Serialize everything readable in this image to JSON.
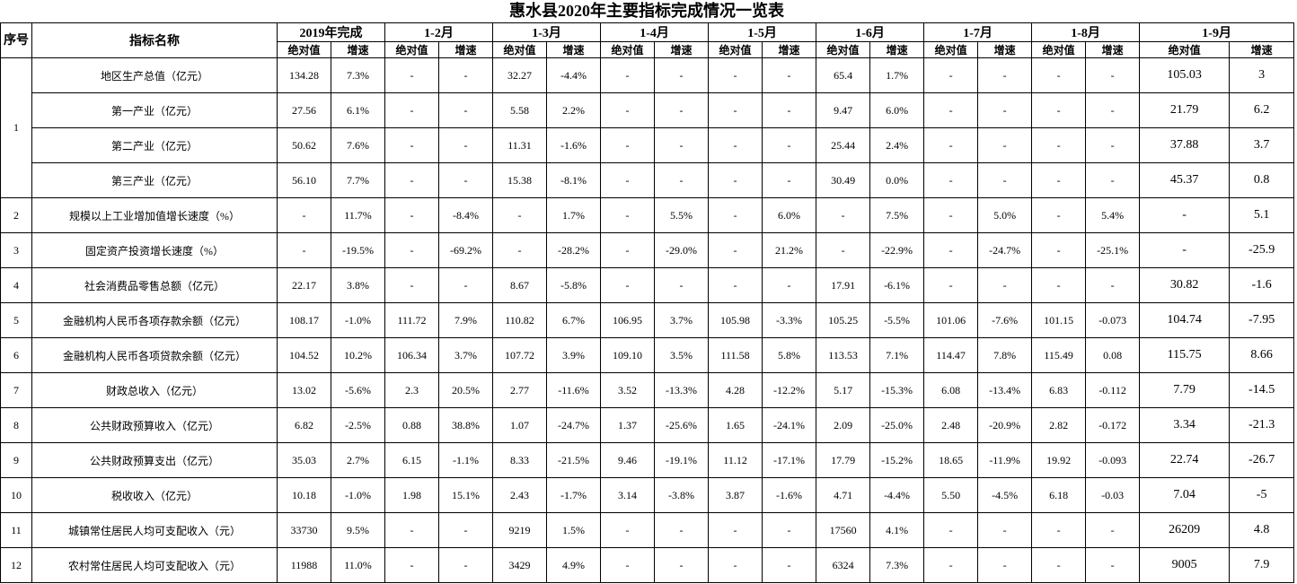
{
  "title": "惠水县2020年主要指标完成情况一览表",
  "header": {
    "no": "序号",
    "name": "指标名称",
    "periods": [
      "2019年完成",
      "1-2月",
      "1-3月",
      "1-4月",
      "1-5月",
      "1-6月",
      "1-7月",
      "1-8月",
      "1-9月"
    ],
    "sub": [
      "绝对值",
      "增速"
    ]
  },
  "rows": [
    {
      "no": "1",
      "items": [
        {
          "name": "地区生产总值（亿元）",
          "cells": [
            "134.28",
            "7.3%",
            "-",
            "-",
            "32.27",
            "-4.4%",
            "-",
            "-",
            "-",
            "-",
            "65.4",
            "1.7%",
            "-",
            "-",
            "-",
            "-",
            "105.03",
            "3"
          ]
        },
        {
          "name": "第一产业（亿元）",
          "cells": [
            "27.56",
            "6.1%",
            "-",
            "-",
            "5.58",
            "2.2%",
            "-",
            "-",
            "-",
            "-",
            "9.47",
            "6.0%",
            "-",
            "-",
            "-",
            "-",
            "21.79",
            "6.2"
          ]
        },
        {
          "name": "第二产业（亿元）",
          "cells": [
            "50.62",
            "7.6%",
            "-",
            "-",
            "11.31",
            "-1.6%",
            "-",
            "-",
            "-",
            "-",
            "25.44",
            "2.4%",
            "-",
            "-",
            "-",
            "-",
            "37.88",
            "3.7"
          ]
        },
        {
          "name": "第三产业（亿元）",
          "cells": [
            "56.10",
            "7.7%",
            "-",
            "-",
            "15.38",
            "-8.1%",
            "-",
            "-",
            "-",
            "-",
            "30.49",
            "0.0%",
            "-",
            "-",
            "-",
            "-",
            "45.37",
            "0.8"
          ]
        }
      ]
    },
    {
      "no": "2",
      "items": [
        {
          "name": "规模以上工业增加值增长速度（%）",
          "cells": [
            "-",
            "11.7%",
            "-",
            "-8.4%",
            "-",
            "1.7%",
            "-",
            "5.5%",
            "-",
            "6.0%",
            "-",
            "7.5%",
            "-",
            "5.0%",
            "-",
            "5.4%",
            "-",
            "5.1"
          ]
        }
      ]
    },
    {
      "no": "3",
      "items": [
        {
          "name": "固定资产投资增长速度（%）",
          "cells": [
            "-",
            "-19.5%",
            "-",
            "-69.2%",
            "-",
            "-28.2%",
            "-",
            "-29.0%",
            "-",
            "21.2%",
            "-",
            "-22.9%",
            "-",
            "-24.7%",
            "-",
            "-25.1%",
            "-",
            "-25.9"
          ]
        }
      ]
    },
    {
      "no": "4",
      "items": [
        {
          "name": "社会消费品零售总额（亿元）",
          "cells": [
            "22.17",
            "3.8%",
            "-",
            "-",
            "8.67",
            "-5.8%",
            "-",
            "-",
            "-",
            "-",
            "17.91",
            "-6.1%",
            "-",
            "-",
            "-",
            "-",
            "30.82",
            "-1.6"
          ]
        }
      ]
    },
    {
      "no": "5",
      "items": [
        {
          "name": "金融机构人民币各项存款余额（亿元）",
          "cells": [
            "108.17",
            "-1.0%",
            "111.72",
            "7.9%",
            "110.82",
            "6.7%",
            "106.95",
            "3.7%",
            "105.98",
            "-3.3%",
            "105.25",
            "-5.5%",
            "101.06",
            "-7.6%",
            "101.15",
            "-0.073",
            "104.74",
            "-7.95"
          ]
        }
      ]
    },
    {
      "no": "6",
      "items": [
        {
          "name": "金融机构人民币各项贷款余额（亿元）",
          "cells": [
            "104.52",
            "10.2%",
            "106.34",
            "3.7%",
            "107.72",
            "3.9%",
            "109.10",
            "3.5%",
            "111.58",
            "5.8%",
            "113.53",
            "7.1%",
            "114.47",
            "7.8%",
            "115.49",
            "0.08",
            "115.75",
            "8.66"
          ]
        }
      ]
    },
    {
      "no": "7",
      "items": [
        {
          "name": "财政总收入（亿元）",
          "cells": [
            "13.02",
            "-5.6%",
            "2.3",
            "20.5%",
            "2.77",
            "-11.6%",
            "3.52",
            "-13.3%",
            "4.28",
            "-12.2%",
            "5.17",
            "-15.3%",
            "6.08",
            "-13.4%",
            "6.83",
            "-0.112",
            "7.79",
            "-14.5"
          ]
        }
      ]
    },
    {
      "no": "8",
      "items": [
        {
          "name": "公共财政预算收入（亿元）",
          "cells": [
            "6.82",
            "-2.5%",
            "0.88",
            "38.8%",
            "1.07",
            "-24.7%",
            "1.37",
            "-25.6%",
            "1.65",
            "-24.1%",
            "2.09",
            "-25.0%",
            "2.48",
            "-20.9%",
            "2.82",
            "-0.172",
            "3.34",
            "-21.3"
          ]
        }
      ]
    },
    {
      "no": "9",
      "items": [
        {
          "name": "公共财政预算支出（亿元）",
          "cells": [
            "35.03",
            "2.7%",
            "6.15",
            "-1.1%",
            "8.33",
            "-21.5%",
            "9.46",
            "-19.1%",
            "11.12",
            "-17.1%",
            "17.79",
            "-15.2%",
            "18.65",
            "-11.9%",
            "19.92",
            "-0.093",
            "22.74",
            "-26.7"
          ]
        }
      ]
    },
    {
      "no": "10",
      "items": [
        {
          "name": "税收收入（亿元）",
          "cells": [
            "10.18",
            "-1.0%",
            "1.98",
            "15.1%",
            "2.43",
            "-1.7%",
            "3.14",
            "-3.8%",
            "3.87",
            "-1.6%",
            "4.71",
            "-4.4%",
            "5.50",
            "-4.5%",
            "6.18",
            "-0.03",
            "7.04",
            "-5"
          ]
        }
      ]
    },
    {
      "no": "11",
      "items": [
        {
          "name": "城镇常住居民人均可支配收入（元）",
          "cells": [
            "33730",
            "9.5%",
            "-",
            "-",
            "9219",
            "1.5%",
            "-",
            "-",
            "-",
            "-",
            "17560",
            "4.1%",
            "-",
            "-",
            "-",
            "-",
            "26209",
            "4.8"
          ]
        }
      ]
    },
    {
      "no": "12",
      "items": [
        {
          "name": "农村常住居民人均可支配收入（元）",
          "cells": [
            "11988",
            "11.0%",
            "-",
            "-",
            "3429",
            "4.9%",
            "-",
            "-",
            "-",
            "-",
            "6324",
            "7.3%",
            "-",
            "-",
            "-",
            "-",
            "9005",
            "7.9"
          ]
        }
      ]
    }
  ]
}
